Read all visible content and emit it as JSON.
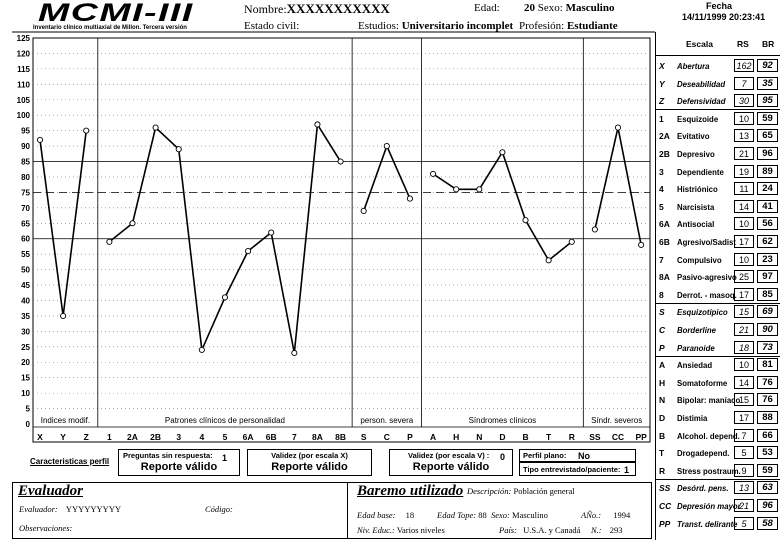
{
  "header": {
    "logo": "MCMI-III",
    "logo_subtitle": "Inventario clínico multiaxial de Millon. Tercera versión",
    "nombre_label": "Nombre:",
    "nombre_value": "XXXXXXXXXXX",
    "estado_civil_label": "Estado civil:",
    "estudios_label": "Estudios:",
    "estudios_value": "Universitario incomplet",
    "profesion_label": "Profesión:",
    "profesion_value": "Estudiante",
    "edad_label": "Edad:",
    "edad_value": "20",
    "sexo_label": "Sexo:",
    "sexo_value": "Masculino",
    "fecha_label": "Fecha",
    "fecha_value": "14/11/1999 20:23:41"
  },
  "chart_data": {
    "type": "line",
    "ylim": [
      0,
      125
    ],
    "yticks": [
      0,
      5,
      10,
      15,
      20,
      25,
      30,
      35,
      40,
      45,
      50,
      55,
      60,
      65,
      70,
      75,
      80,
      85,
      90,
      95,
      100,
      105,
      110,
      115,
      120,
      125
    ],
    "reference_lines": [
      {
        "value": 85,
        "style": "solid"
      },
      {
        "value": 75,
        "style": "dashed"
      },
      {
        "value": 60,
        "style": "solid"
      }
    ],
    "grid": "dotted",
    "categories": [
      "X",
      "Y",
      "Z",
      "1",
      "2A",
      "2B",
      "3",
      "4",
      "5",
      "6A",
      "6B",
      "7",
      "8A",
      "8B",
      "S",
      "C",
      "P",
      "A",
      "H",
      "N",
      "D",
      "B",
      "T",
      "R",
      "SS",
      "CC",
      "PP"
    ],
    "groups": [
      {
        "name": "Indices modif.",
        "values": [
          92,
          35,
          95
        ]
      },
      {
        "name": "Patrones clínicos de personalidad",
        "values": [
          59,
          65,
          96,
          89,
          24,
          41,
          56,
          62,
          23,
          97,
          85
        ]
      },
      {
        "name": "person. severa",
        "values": [
          69,
          90,
          73
        ]
      },
      {
        "name": "Síndromes clínicos",
        "values": [
          81,
          76,
          76,
          88,
          66,
          53,
          59
        ]
      },
      {
        "name": "Síndr. severos",
        "values": [
          63,
          96,
          58
        ]
      }
    ]
  },
  "validity": {
    "link": "Caracteristicas perfil",
    "preguntas_label": "Preguntas sin respuesta:",
    "preguntas_value": "1",
    "preguntas_result": "Reporte  válido",
    "validez_x_label": "Validez (por escala X)",
    "validez_x_result": "Reporte válido",
    "validez_v_label": "Validez (por escala V) :",
    "validez_v_value": "0",
    "validez_v_result": "Reporte válido",
    "perfil_plano_label": "Perfil plano:",
    "perfil_plano_value": "No",
    "tipo_label": "Tipo entrevistado/paciente:",
    "tipo_value": "1"
  },
  "evaluador": {
    "title": "Evaluador",
    "evaluador_label": "Evaluador:",
    "evaluador_value": "YYYYYYYYY",
    "codigo_label": "Código:",
    "observaciones_label": "Observaciones:"
  },
  "baremo": {
    "title": "Baremo utilizado",
    "descripcion_label": "Descripción:",
    "descripcion_value": "Población general",
    "edad_base_label": "Edad base:",
    "edad_base_value": "18",
    "edad_tope_label": "Edad Tope:",
    "edad_tope_value": "88",
    "sexo_label": "Sexo:",
    "sexo_value": "Masculino",
    "anio_label": "AÑo.:",
    "anio_value": "1994",
    "niv_label": "Niv. Educ.:",
    "niv_value": "Varios niveles",
    "pais_label": "País:",
    "pais_value": "U.S.A. y Canadá",
    "n_label": "N.:",
    "n_value": "293"
  },
  "scales_table": {
    "header": {
      "escala": "Escala",
      "rs": "RS",
      "br": "BR"
    },
    "rows": [
      {
        "code": "X",
        "name": "Abertura",
        "rs": "162",
        "br": "92",
        "italic": true
      },
      {
        "code": "Y",
        "name": "Deseabilidad",
        "rs": "7",
        "br": "35",
        "italic": true
      },
      {
        "code": "Z",
        "name": "Defensividad",
        "rs": "30",
        "br": "95",
        "italic": true
      },
      {
        "code": "1",
        "name": "Esquizoide",
        "rs": "10",
        "br": "59"
      },
      {
        "code": "2A",
        "name": "Evitativo",
        "rs": "13",
        "br": "65"
      },
      {
        "code": "2B",
        "name": "Depresivo",
        "rs": "21",
        "br": "96"
      },
      {
        "code": "3",
        "name": "Dependiente",
        "rs": "19",
        "br": "89"
      },
      {
        "code": "4",
        "name": "Histriónico",
        "rs": "11",
        "br": "24"
      },
      {
        "code": "5",
        "name": "Narcisista",
        "rs": "14",
        "br": "41"
      },
      {
        "code": "6A",
        "name": "Antisocial",
        "rs": "10",
        "br": "56"
      },
      {
        "code": "6B",
        "name": "Agresivo/Sadist",
        "rs": "17",
        "br": "62"
      },
      {
        "code": "7",
        "name": "Compulsivo",
        "rs": "10",
        "br": "23"
      },
      {
        "code": "8A",
        "name": "Pasivo-agresivo",
        "rs": "25",
        "br": "97"
      },
      {
        "code": "8",
        "name": "Derrot. - masoq.",
        "rs": "17",
        "br": "85"
      },
      {
        "code": "S",
        "name": "Esquizotípico",
        "rs": "15",
        "br": "69",
        "italic": true
      },
      {
        "code": "C",
        "name": "Borderline",
        "rs": "21",
        "br": "90",
        "italic": true
      },
      {
        "code": "P",
        "name": "Paranoide",
        "rs": "18",
        "br": "73",
        "italic": true
      },
      {
        "code": "A",
        "name": "Ansiedad",
        "rs": "10",
        "br": "81"
      },
      {
        "code": "H",
        "name": "Somatoforme",
        "rs": "14",
        "br": "76"
      },
      {
        "code": "N",
        "name": "Bipolar: maníaco",
        "rs": "15",
        "br": "76"
      },
      {
        "code": "D",
        "name": "Distimia",
        "rs": "17",
        "br": "88"
      },
      {
        "code": "B",
        "name": "Alcohol. depend.",
        "rs": "7",
        "br": "66"
      },
      {
        "code": "T",
        "name": "Drogadepend.",
        "rs": "5",
        "br": "53"
      },
      {
        "code": "R",
        "name": "Stress postraum.",
        "rs": "9",
        "br": "59"
      },
      {
        "code": "SS",
        "name": "Desórd. pens.",
        "rs": "13",
        "br": "63",
        "italic": true
      },
      {
        "code": "CC",
        "name": "Depresión mayor",
        "rs": "21",
        "br": "96",
        "italic": true
      },
      {
        "code": "PP",
        "name": "Transt. delirante",
        "rs": "5",
        "br": "58",
        "italic": true
      }
    ]
  }
}
